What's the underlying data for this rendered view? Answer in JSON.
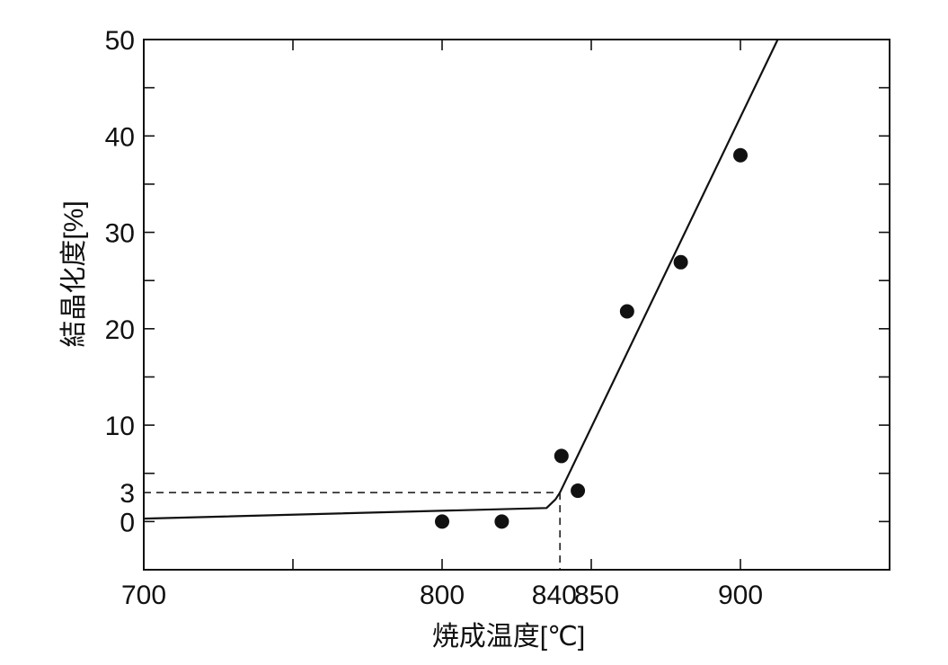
{
  "chart_data": {
    "type": "scatter",
    "xlabel": "焼成温度[℃]",
    "ylabel": "結晶化度[%]",
    "xlim": [
      700,
      950
    ],
    "ylim": [
      -5,
      50
    ],
    "x_tick_labels": [
      {
        "value": 700,
        "label": "700"
      },
      {
        "value": 800,
        "label": "800"
      },
      {
        "value": 840,
        "label": "840"
      },
      {
        "value": 850,
        "label": "850"
      },
      {
        "value": 900,
        "label": "900"
      }
    ],
    "y_tick_labels": [
      {
        "value": 0,
        "label": "0"
      },
      {
        "value": 3,
        "label": "3"
      },
      {
        "value": 10,
        "label": "10"
      },
      {
        "value": 20,
        "label": "20"
      },
      {
        "value": 30,
        "label": "30"
      },
      {
        "value": 40,
        "label": "40"
      },
      {
        "value": 50,
        "label": "50"
      }
    ],
    "x_minor_ticks": [
      750,
      800,
      850,
      900
    ],
    "y_minor_ticks": [
      -5,
      0,
      5,
      10,
      15,
      20,
      25,
      30,
      35,
      40,
      45,
      50
    ],
    "points": [
      {
        "x": 800,
        "y": 0
      },
      {
        "x": 820,
        "y": 0
      },
      {
        "x": 840,
        "y": 6.8
      },
      {
        "x": 845.5,
        "y": 3.2
      },
      {
        "x": 862,
        "y": 21.8
      },
      {
        "x": 880,
        "y": 26.9
      },
      {
        "x": 900,
        "y": 38
      }
    ],
    "fit_line": [
      {
        "x": 700,
        "y": 0.3
      },
      {
        "x": 835,
        "y": 1.4
      },
      {
        "x": 838,
        "y": 2.3
      },
      {
        "x": 839.5,
        "y": 3.0
      },
      {
        "x": 912.5,
        "y": 50
      }
    ],
    "reference_lines": {
      "x": 839.5,
      "y": 3
    },
    "grid": false,
    "legend": "none"
  }
}
